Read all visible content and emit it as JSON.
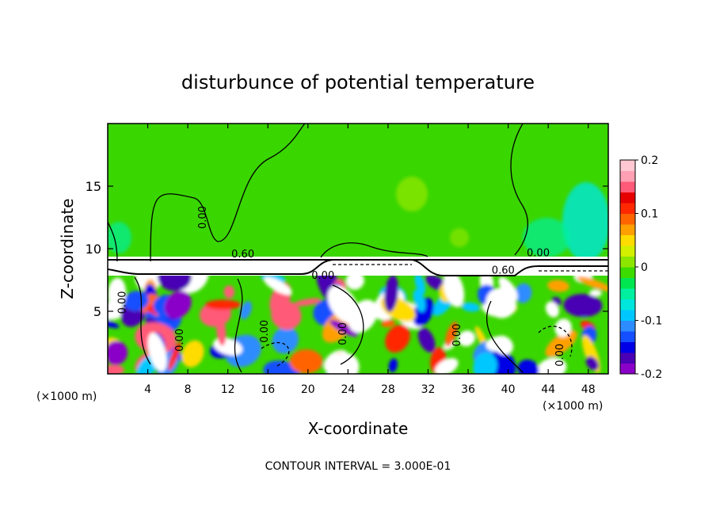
{
  "chart_data": {
    "type": "heatmap",
    "title": "disturbunce of potential temperature",
    "xlabel": "X-coordinate",
    "ylabel": "Z-coordinate",
    "x_unit": "(×1000 m)",
    "xlim": [
      0,
      50
    ],
    "ylim": [
      0,
      20
    ],
    "x_ticks": [
      4,
      8,
      12,
      16,
      20,
      24,
      28,
      32,
      36,
      40,
      44,
      48
    ],
    "y_ticks": [
      5,
      10,
      15
    ],
    "colorbar": {
      "range": [
        -0.2,
        0.2
      ],
      "ticks": [
        "0.2",
        "0.1",
        "0",
        "-0.1",
        "-0.2"
      ],
      "colors": [
        "#8b00c8",
        "#4a00b4",
        "#0000e6",
        "#1450ff",
        "#2d8cff",
        "#00c8ff",
        "#00e6dc",
        "#00f0a0",
        "#00e650",
        "#3cdc00",
        "#8ce600",
        "#d2f000",
        "#ffdc00",
        "#ffa000",
        "#ff6400",
        "#ff2800",
        "#e60000",
        "#ff5a78",
        "#ffa0b4",
        "#ffc8d2"
      ]
    },
    "contour_labels": [
      {
        "text": "0.00",
        "x": 9.8,
        "y": 12.5
      },
      {
        "text": "0.60",
        "x": 13.5,
        "y": 9.3
      },
      {
        "text": "0.00",
        "x": 21.5,
        "y": 7.6
      },
      {
        "text": "0.60",
        "x": 39.5,
        "y": 8.0
      },
      {
        "text": "0.00",
        "x": 43.0,
        "y": 9.4
      },
      {
        "text": "0.00",
        "x": 1.8,
        "y": 5.7
      },
      {
        "text": "0.00",
        "x": 7.5,
        "y": 2.7
      },
      {
        "text": "0.00",
        "x": 16.0,
        "y": 3.4
      },
      {
        "text": "0.00",
        "x": 23.8,
        "y": 3.2
      },
      {
        "text": "0.00",
        "x": 35.2,
        "y": 3.1
      },
      {
        "text": "0.00",
        "x": 45.5,
        "y": 1.5
      }
    ],
    "footer": "CONTOUR INTERVAL = 3.000E-01"
  }
}
